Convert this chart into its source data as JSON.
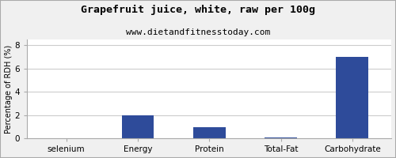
{
  "title": "Grapefruit juice, white, raw per 100g",
  "subtitle": "www.dietandfitnesstoday.com",
  "categories": [
    "selenium",
    "Energy",
    "Protein",
    "Total-Fat",
    "Carbohydrate"
  ],
  "values": [
    0.0,
    2.0,
    1.0,
    0.1,
    7.0
  ],
  "bar_color": "#2e4b9a",
  "ylabel": "Percentage of RDH (%)",
  "ylim": [
    0,
    8.5
  ],
  "yticks": [
    0,
    2,
    4,
    6,
    8
  ],
  "background_color": "#f0f0f0",
  "plot_background": "#ffffff",
  "title_fontsize": 9.5,
  "subtitle_fontsize": 8,
  "ylabel_fontsize": 7,
  "tick_fontsize": 7.5,
  "border_color": "#aaaaaa"
}
